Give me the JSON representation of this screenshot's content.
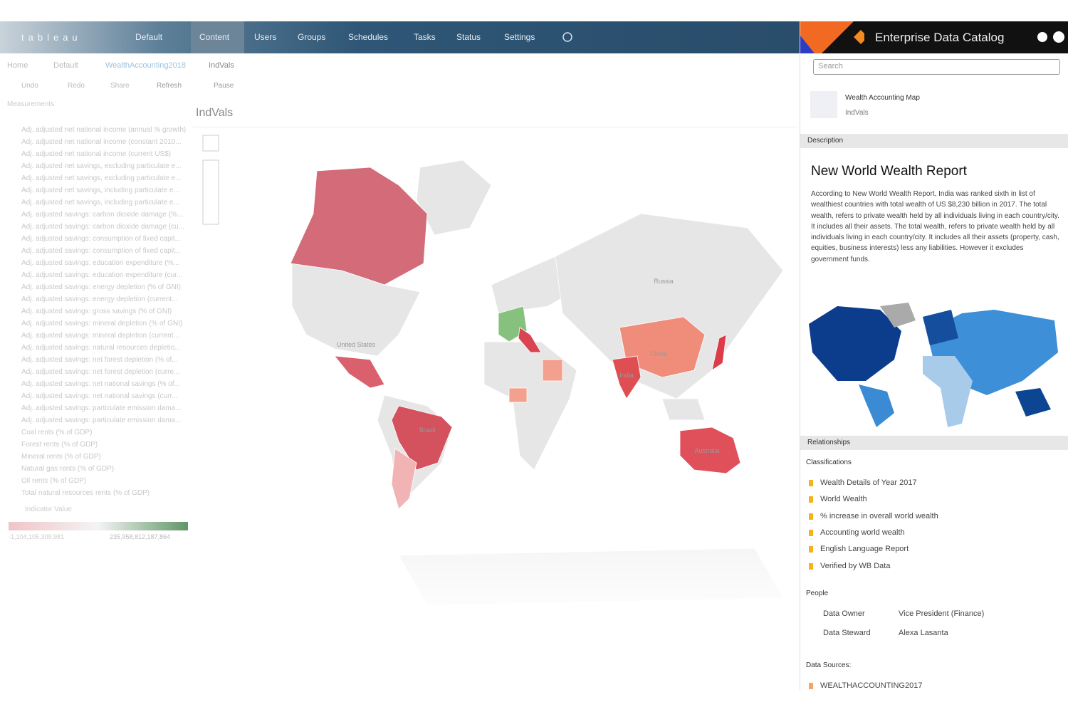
{
  "nav": {
    "logo": "tableau",
    "site": "Default",
    "items": [
      "Content",
      "Users",
      "Groups",
      "Schedules",
      "Tasks",
      "Status",
      "Settings"
    ]
  },
  "breadcrumb": [
    "Home",
    "Default",
    "WealthAccounting2018",
    "IndVals"
  ],
  "toolbar": [
    "Undo",
    "Redo",
    "Share",
    "Refresh",
    "Pause"
  ],
  "view_title": "IndVals",
  "sidebar": {
    "heading": "Measurements",
    "items": [
      "Adj. adjusted net national income (annual % growth)",
      "Adj. adjusted net national income (constant 2010...",
      "Adj. adjusted net national income (current US$)",
      "Adj. adjusted net savings, excluding particulate e...",
      "Adj. adjusted net savings, excluding particulate e...",
      "Adj. adjusted net savings, including particulate e...",
      "Adj. adjusted net savings, including particulate e...",
      "Adj. adjusted savings: carbon dioxide damage (%...",
      "Adj. adjusted savings: carbon dioxide damage (cu...",
      "Adj. adjusted savings: consumption of fixed capit...",
      "Adj. adjusted savings: consumption of fixed capit...",
      "Adj. adjusted savings: education expenditure (%...",
      "Adj. adjusted savings: education expenditure (cur...",
      "Adj. adjusted savings: energy depletion (% of GNI)",
      "Adj. adjusted savings: energy depletion (current...",
      "Adj. adjusted savings: gross savings (% of GNI)",
      "Adj. adjusted savings: mineral depletion (% of GNI)",
      "Adj. adjusted savings: mineral depletion (current...",
      "Adj. adjusted savings: natural resources depletio...",
      "Adj. adjusted savings: net forest depletion (% of...",
      "Adj. adjusted savings: net forest depletion (curre...",
      "Adj. adjusted savings: net national savings (% of...",
      "Adj. adjusted savings: net national savings (curr...",
      "Adj. adjusted savings: particulate emission dama...",
      "Adj. adjusted savings: particulate emission dama...",
      "Coal rents (% of GDP)",
      "Forest rents (% of GDP)",
      "Mineral rents (% of GDP)",
      "Natural gas rents (% of GDP)",
      "Oil rents (% of GDP)",
      "Total natural resources rents (% of GDP)"
    ],
    "legend_title": "Indicator Value",
    "legend_min": "-1,104,105,309,981",
    "legend_max": "235,958,812,187,864"
  },
  "map_labels": [
    "Russia",
    "United States",
    "China",
    "India",
    "Brazil",
    "Australia"
  ],
  "catalog": {
    "title": "Enterprise Data Catalog",
    "search": "Search",
    "asset_name": "Wealth Accounting Map",
    "asset_sub": "IndVals",
    "description_header": "Description",
    "report_title": "New World Wealth Report",
    "report_text": "According to New World Wealth Report, India was ranked sixth in list of wealthiest countries with total wealth of US $8,230 billion in 2017. The total wealth, refers to private wealth held by all individuals living in each country/city. It includes all their assets. The total wealth, refers to private wealth held by all individuals living in each country/city. It includes all their assets (property, cash, equities, business interests) less any liabilities. However it excludes government funds.",
    "relationships_header": "Relationships",
    "classifications_label": "Classifications",
    "classifications": [
      "Wealth Details of Year 2017",
      "World Wealth",
      "% increase in overall world wealth",
      "Accounting world wealth",
      "English Language Report",
      "Verified by WB Data"
    ],
    "people_label": "People",
    "people": [
      {
        "role": "Data Owner",
        "name": "Vice President (Finance)"
      },
      {
        "role": "Data Steward",
        "name": "Alexa Lasanta"
      }
    ],
    "sources_label": "Data Sources:",
    "sources": [
      "WEALTHACCOUNTING2017"
    ]
  }
}
